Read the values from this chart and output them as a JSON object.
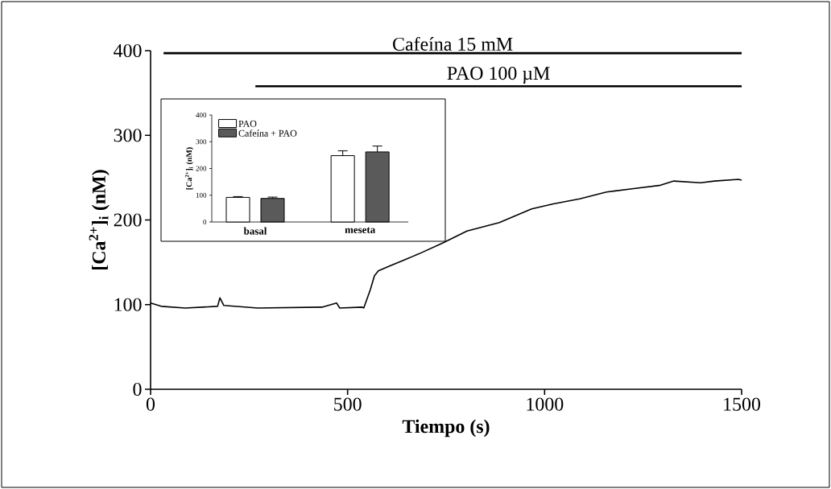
{
  "chart_data": [
    {
      "type": "line",
      "xlabel": "Tiempo (s)",
      "ylabel": "[Ca$^{2+}$]$_{i}$ (nM)",
      "xlim": [
        0,
        1500
      ],
      "ylim": [
        0,
        400
      ],
      "xticks": [
        0,
        500,
        1000,
        1500
      ],
      "yticks": [
        0,
        100,
        200,
        300,
        400
      ],
      "grid": false,
      "legend": false,
      "marker": "none",
      "line_style": "solid",
      "series": [
        {
          "color": "#000000",
          "x": [
            0,
            27,
            88,
            170,
            176,
            186,
            272,
            435,
            472,
            480,
            537,
            541,
            558,
            568,
            578,
            609,
            640,
            681,
            742,
            803,
            885,
            967,
            1022,
            1089,
            1157,
            1226,
            1294,
            1328,
            1396,
            1431,
            1492,
            1500
          ],
          "values": [
            102,
            98,
            96,
            98,
            108,
            99,
            96,
            97,
            102,
            96,
            97,
            96,
            118,
            134,
            140,
            146,
            152,
            160,
            173,
            187,
            197,
            213,
            219,
            225,
            233,
            237,
            241,
            246,
            244,
            246,
            248,
            247
          ]
        },
        {
          "name": "Cafeína 15 mM",
          "color": "#000000",
          "x": [
            33,
            1500
          ],
          "values": [
            397,
            397
          ]
        },
        {
          "name": "PAO 100 µM",
          "color": "#000000",
          "x": [
            266,
            1500
          ],
          "values": [
            358,
            358
          ]
        }
      ]
    },
    {
      "type": "bar",
      "ylabel": "[Ca$^{2+}$]$_{i}$ (nM)",
      "categories": [
        "basal",
        "meseta"
      ],
      "ylim": [
        0,
        400
      ],
      "yticks": [
        0,
        100,
        200,
        300,
        400
      ],
      "grid": false,
      "legend": "top left",
      "series": [
        {
          "name": "PAO",
          "color": "#ffffff",
          "values": [
            92,
            248
          ],
          "errors": [
            3,
            18
          ]
        },
        {
          "name": "Cafeína + PAO",
          "color": "#5a5a5a",
          "values": [
            88,
            262
          ],
          "errors": [
            5,
            22
          ]
        }
      ]
    }
  ]
}
